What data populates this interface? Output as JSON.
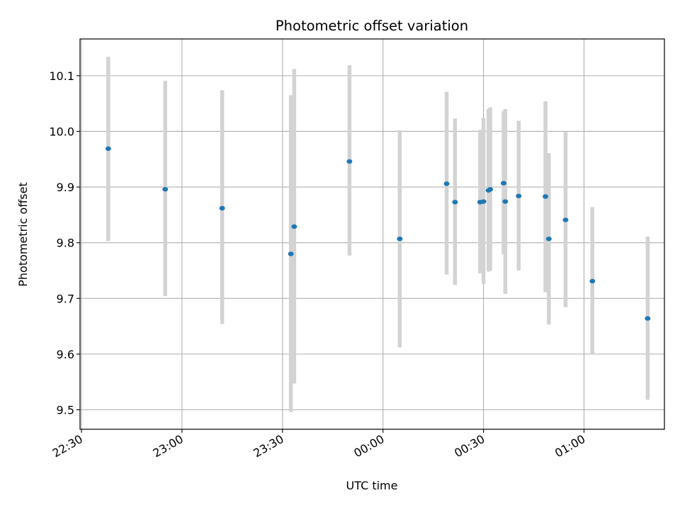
{
  "chart_data": {
    "type": "scatter",
    "title": "Photometric offset variation",
    "xlabel": "UTC time",
    "ylabel": "Photometric offset",
    "x_ticks": [
      "22:30",
      "23:00",
      "23:30",
      "00:00",
      "00:30",
      "01:00"
    ],
    "y_ticks": [
      "9.5",
      "9.6",
      "9.7",
      "9.8",
      "9.9",
      "10.0",
      "10.1"
    ],
    "xlim": [
      "22:30",
      "01:24"
    ],
    "ylim": [
      9.465,
      10.166
    ],
    "grid": true,
    "point_color": "#1f77b4",
    "errorbar_color": "#d3d3d3",
    "points": [
      {
        "x": "22:38",
        "y": 9.969,
        "lo": 9.803,
        "hi": 10.134
      },
      {
        "x": "22:55",
        "y": 9.896,
        "lo": 9.704,
        "hi": 10.091
      },
      {
        "x": "23:12",
        "y": 9.862,
        "lo": 9.654,
        "hi": 10.074
      },
      {
        "x": "23:32.5",
        "y": 9.78,
        "lo": 9.496,
        "hi": 10.065
      },
      {
        "x": "23:33.5",
        "y": 9.829,
        "lo": 9.547,
        "hi": 10.112
      },
      {
        "x": "23:50",
        "y": 9.946,
        "lo": 9.777,
        "hi": 10.119
      },
      {
        "x": "00:05",
        "y": 9.807,
        "lo": 9.612,
        "hi": 10.002
      },
      {
        "x": "00:19",
        "y": 9.906,
        "lo": 9.743,
        "hi": 10.071
      },
      {
        "x": "00:21.5",
        "y": 9.873,
        "lo": 9.724,
        "hi": 10.023
      },
      {
        "x": "00:29",
        "y": 9.873,
        "lo": 9.745,
        "hi": 10.003
      },
      {
        "x": "00:30",
        "y": 9.874,
        "lo": 9.726,
        "hi": 10.024
      },
      {
        "x": "00:31.5",
        "y": 9.894,
        "lo": 9.748,
        "hi": 10.04
      },
      {
        "x": "00:32",
        "y": 9.896,
        "lo": 9.75,
        "hi": 10.043
      },
      {
        "x": "00:36",
        "y": 9.907,
        "lo": 9.779,
        "hi": 10.036
      },
      {
        "x": "00:36.5",
        "y": 9.874,
        "lo": 9.708,
        "hi": 10.04
      },
      {
        "x": "00:40.5",
        "y": 9.884,
        "lo": 9.75,
        "hi": 10.019
      },
      {
        "x": "00:48.5",
        "y": 9.883,
        "lo": 9.711,
        "hi": 10.054
      },
      {
        "x": "00:49.5",
        "y": 9.807,
        "lo": 9.653,
        "hi": 9.961
      },
      {
        "x": "00:54.5",
        "y": 9.841,
        "lo": 9.684,
        "hi": 9.999
      },
      {
        "x": "01:02.5",
        "y": 9.731,
        "lo": 9.6,
        "hi": 9.864
      },
      {
        "x": "01:19",
        "y": 9.664,
        "lo": 9.518,
        "hi": 9.811
      }
    ]
  }
}
